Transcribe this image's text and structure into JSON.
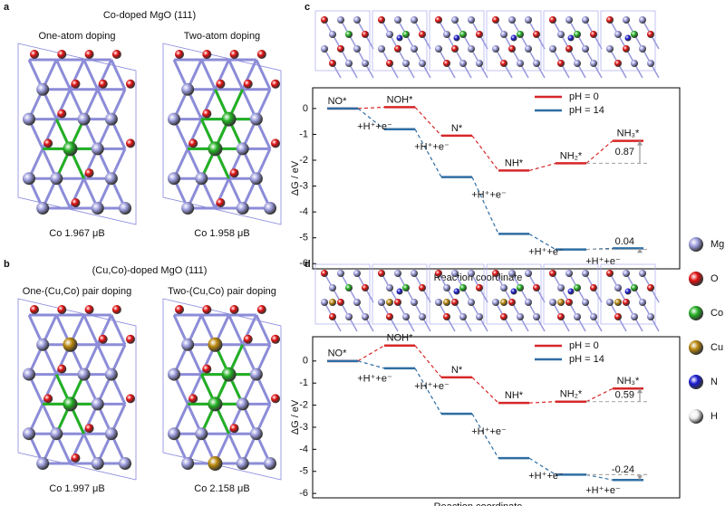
{
  "panels": [
    {
      "letter": "a",
      "title": "Co-doped MgO (111)",
      "structures": [
        {
          "label": "One-atom doping",
          "moment": "Co 1.967 μB"
        },
        {
          "label": "Two-atom doping",
          "moment": "Co 1.958 μB"
        }
      ]
    },
    {
      "letter": "b",
      "title": "(Cu,Co)-doped MgO (111)",
      "structures": [
        {
          "label": "One-(Cu,Co) pair doping",
          "moment": "Co 1.997 μB"
        },
        {
          "label": "Two-(Cu,Co) pair doping",
          "moment": "Co 2.158 μB"
        }
      ]
    }
  ],
  "chart_data": [
    {
      "type": "energy-profile",
      "panel": "c",
      "categories": [
        "NO*",
        "NOH*",
        "N*",
        "NH*",
        "NH₂*",
        "NH₃*"
      ],
      "step_label": "+H⁺+e⁻",
      "series": [
        {
          "name": "pH = 0",
          "color": "#d62728",
          "values": [
            0,
            0.05,
            -1.05,
            -2.4,
            -2.12,
            -1.25
          ]
        },
        {
          "name": "pH = 14",
          "color": "#2f6da3",
          "values": [
            0,
            -0.8,
            -2.65,
            -4.85,
            -5.45,
            -5.41
          ]
        }
      ],
      "annotations": [
        "0.87",
        "0.04"
      ],
      "ylim": [
        -6.2,
        0.8
      ],
      "yticks": [
        0,
        -1,
        -2,
        -3,
        -4,
        -5,
        -6
      ],
      "ylabel": "ΔG / eV",
      "xlabel": "Reaction coordinate"
    },
    {
      "type": "energy-profile",
      "panel": "d",
      "categories": [
        "NO*",
        "NOH*",
        "N*",
        "NH*",
        "NH₂*",
        "NH₃*"
      ],
      "step_label": "+H⁺+e⁻",
      "series": [
        {
          "name": "pH = 0",
          "color": "#d62728",
          "values": [
            0,
            0.7,
            -0.74,
            -1.9,
            -1.84,
            -1.25
          ]
        },
        {
          "name": "pH = 14",
          "color": "#2f6da3",
          "values": [
            0,
            -0.33,
            -2.39,
            -4.4,
            -5.15,
            -5.39
          ]
        }
      ],
      "annotations": [
        "0.59",
        "-0.24"
      ],
      "ylim": [
        -6.2,
        1.1
      ],
      "yticks": [
        0,
        -1,
        -2,
        -3,
        -4,
        -5,
        -6
      ],
      "ylabel": "ΔG / eV",
      "xlabel": "Reaction coordinate"
    }
  ],
  "legend": [
    {
      "name": "Mg",
      "color": "#9b9bdc"
    },
    {
      "name": "O",
      "color": "#e01010"
    },
    {
      "name": "Co",
      "color": "#22b022"
    },
    {
      "name": "Cu",
      "color": "#b8860b"
    },
    {
      "name": "N",
      "color": "#1a1ad0"
    },
    {
      "name": "H",
      "color": "#eeeeee"
    }
  ]
}
